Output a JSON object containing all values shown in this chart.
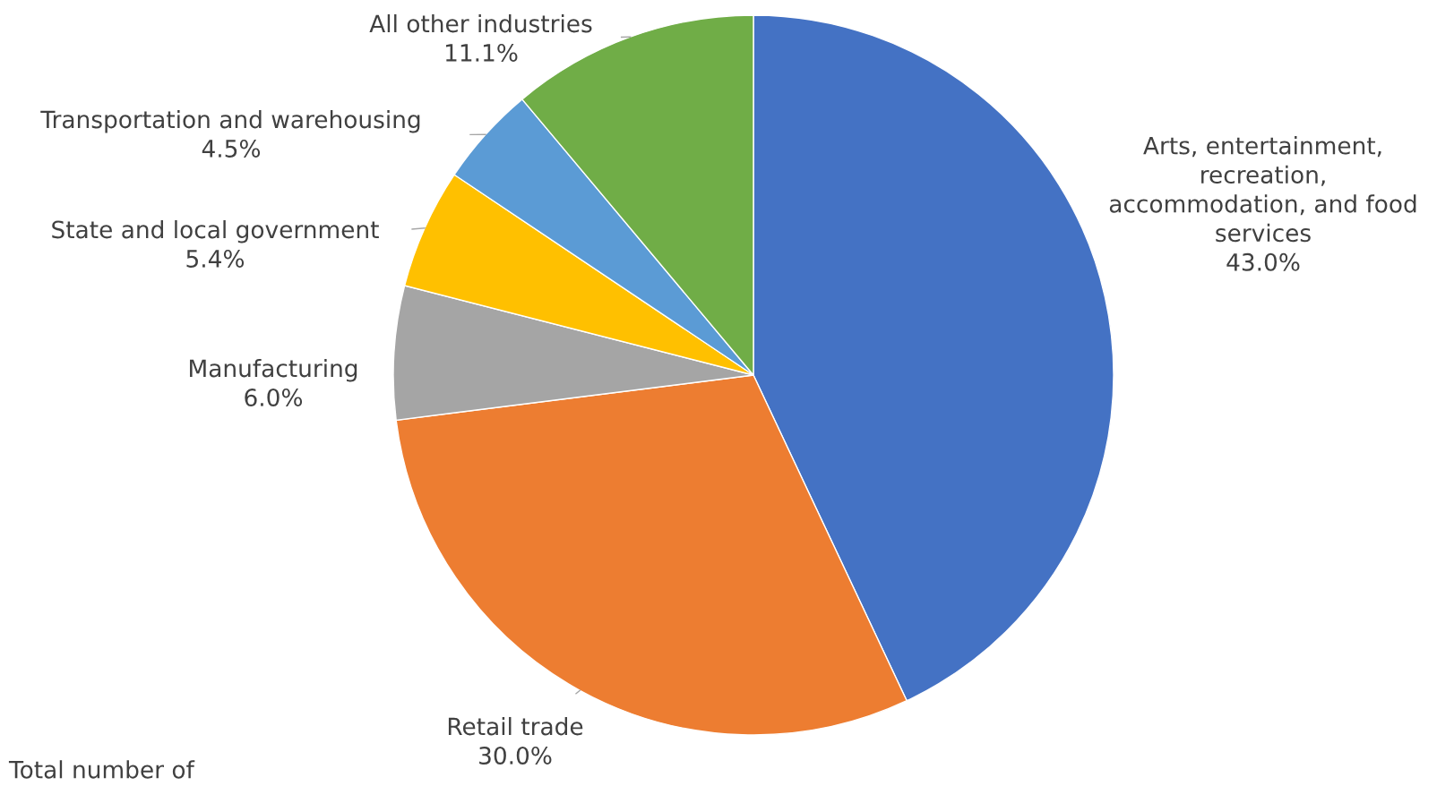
{
  "chart_data": {
    "type": "pie",
    "categories": [
      "Arts, entertainment, recreation, accommodation, and food services",
      "Retail trade",
      "Manufacturing",
      "State and local government",
      "Transportation and warehousing",
      "All other industries"
    ],
    "values": [
      43.0,
      30.0,
      6.0,
      5.4,
      4.5,
      11.1
    ],
    "value_labels": [
      "43.0%",
      "30.0%",
      "6.0%",
      "5.4%",
      "4.5%",
      "11.1%"
    ],
    "colors": [
      "#4472c4",
      "#ed7d31",
      "#a5a5a5",
      "#ffc000",
      "#5b9bd5",
      "#70ad47"
    ],
    "annotations": [
      "Total number of"
    ],
    "legend": false
  }
}
